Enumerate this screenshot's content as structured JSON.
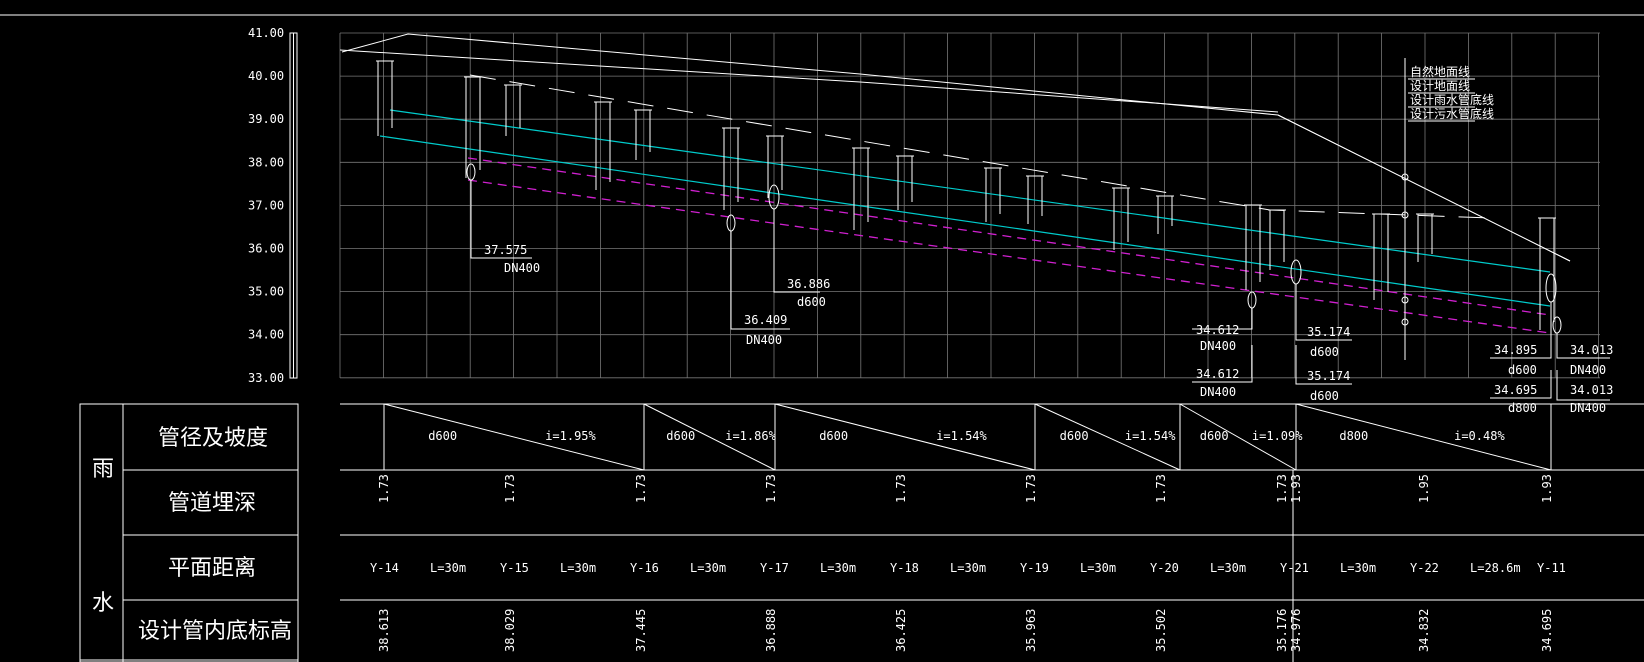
{
  "elevation_axis": [
    "41.00",
    "40.00",
    "39.00",
    "38.00",
    "37.00",
    "36.00",
    "35.00",
    "34.00",
    "33.00"
  ],
  "legend": [
    "自然地面线",
    "设计地面线",
    "设计雨水管底线",
    "设计污水管底线"
  ],
  "pipe_labels": [
    {
      "elev": "37.575",
      "size": "DN400"
    },
    {
      "elev": "36.886",
      "size": "d600"
    },
    {
      "elev": "36.409",
      "size": "DN400"
    },
    {
      "elev": "34.612",
      "size": "DN400"
    },
    {
      "elev": "34.612",
      "size": "DN400"
    },
    {
      "elev": "35.174",
      "size": "d600"
    },
    {
      "elev": "35.174",
      "size": "d600"
    },
    {
      "elev": "34.895",
      "size": "d600"
    },
    {
      "elev": "34.695",
      "size": "d800"
    },
    {
      "elev": "34.013",
      "size": "DN400"
    },
    {
      "elev": "34.013",
      "size": "DN400"
    }
  ],
  "table": {
    "group_label_top": "雨",
    "group_label_bottom": "水",
    "row_headers": [
      "管径及坡度",
      "管道埋深",
      "平面距离",
      "设计管内底标高"
    ],
    "pipe_segments": [
      {
        "size": "d600",
        "slope": "i=1.95%"
      },
      {
        "size": "d600",
        "slope": "i=1.86%"
      },
      {
        "size": "d600",
        "slope": "i=1.54%"
      },
      {
        "size": "d600",
        "slope": "i=1.54%"
      },
      {
        "size": "d600",
        "slope": "i=1.09%"
      },
      {
        "size": "d800",
        "slope": "i=0.48%"
      }
    ],
    "depths": [
      "1.73",
      "1.73",
      "1.73",
      "1.73",
      "1.73",
      "1.73",
      "1.73",
      "1.73",
      "1.93",
      "1.95",
      "1.93"
    ],
    "distance_items": [
      "Y-14",
      "L=30m",
      "Y-15",
      "L=30m",
      "Y-16",
      "L=30m",
      "Y-17",
      "L=30m",
      "Y-18",
      "L=30m",
      "Y-19",
      "L=30m",
      "Y-20",
      "L=30m",
      "Y-21",
      "L=30m",
      "Y-22",
      "L=28.6m",
      "Y-11"
    ],
    "invert_elevations": [
      "38.613",
      "38.029",
      "37.445",
      "36.888",
      "36.425",
      "35.963",
      "35.502",
      "35.176",
      "34.976",
      "34.832",
      "34.695"
    ]
  }
}
